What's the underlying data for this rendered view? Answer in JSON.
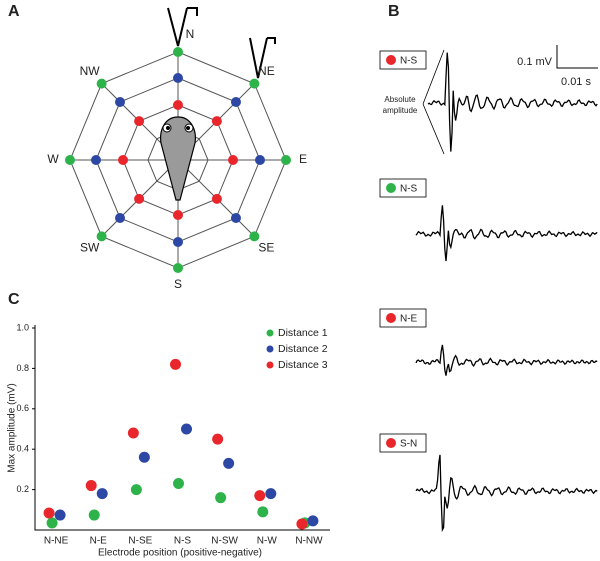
{
  "panel_labels": [
    "A",
    "B",
    "C"
  ],
  "compass": {
    "directions": [
      "N",
      "NE",
      "E",
      "SE",
      "S",
      "SW",
      "W",
      "NW"
    ],
    "ring_colors": [
      "#2db34a",
      "#2d47a5",
      "#e8262b"
    ]
  },
  "traces": {
    "scale": {
      "voltage": "0.1 mV",
      "time": "0.01 s"
    },
    "annotation": [
      "Absolute",
      "amplitude"
    ],
    "recordings": [
      {
        "label": "N-S",
        "color": "#e8262b"
      },
      {
        "label": "N-S",
        "color": "#2db34a"
      },
      {
        "label": "N-E",
        "color": "#e8262b"
      },
      {
        "label": "S-N",
        "color": "#e8262b"
      }
    ]
  },
  "chart_data": {
    "type": "scatter",
    "x_label": "Electrode position (positive-negative)",
    "y_label": "Max amplitude (mV)",
    "categories": [
      "N-NE",
      "N-E",
      "N-SE",
      "N-S",
      "N-SW",
      "N-W",
      "N-NW"
    ],
    "series": [
      {
        "name": "Distance 1",
        "color": "#2db34a",
        "values": [
          0.035,
          0.074,
          0.2,
          0.23,
          0.16,
          0.09,
          0.035
        ]
      },
      {
        "name": "Distance 2",
        "color": "#2d47a5",
        "values": [
          0.074,
          0.18,
          0.36,
          0.5,
          0.33,
          0.18,
          0.045
        ]
      },
      {
        "name": "Distance 3",
        "color": "#e8262b",
        "values": [
          0.084,
          0.22,
          0.48,
          0.82,
          0.45,
          0.17,
          0.03
        ]
      }
    ],
    "ylim": [
      0,
      1
    ],
    "yticks": [
      0.2,
      0.4,
      0.6,
      0.8,
      {
        "value": 1,
        "label": "1.0"
      }
    ],
    "grid": false,
    "legend": "upper right"
  }
}
